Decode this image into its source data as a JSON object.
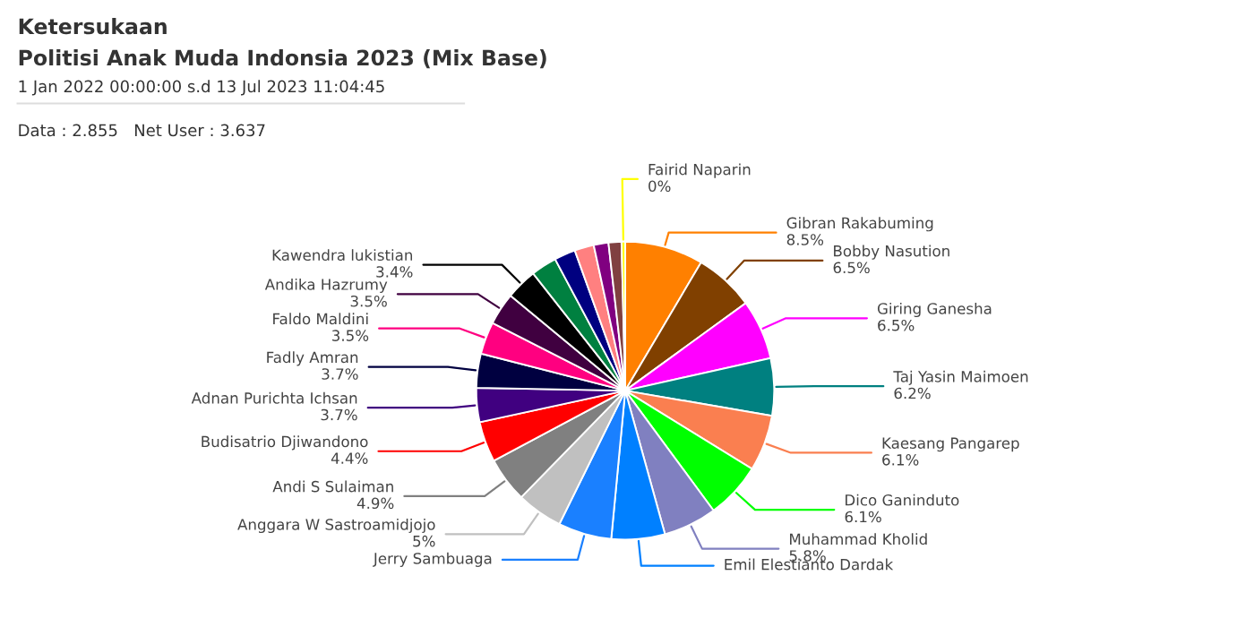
{
  "chart_data": {
    "type": "pie",
    "title": "Ketersukaan",
    "subtitle": "Politisi Anak Muda Indonsia 2023 (Mix Base)",
    "annotations": [
      "1 Jan 2022 00:00:00 s.d 13 Jul 2023 11:04:45",
      "Data : 2.855   Net User : 3.637"
    ],
    "categories": [
      "Gibran Rakabuming",
      "Bobby Nasution",
      "Giring Ganesha",
      "Taj Yasin Maimoen",
      "Kaesang Pangarep",
      "Dico Ganinduto",
      "Muhammad Kholid",
      "Emil Elestianto Dardak",
      "Jerry Sambuaga",
      "Anggara W Sastroamidjojo",
      "Andi S Sulaiman",
      "Budisatrio Djiwandono",
      "Adnan Purichta Ichsan",
      "Fadly Amran",
      "Faldo Maldini",
      "Andika Hazrumy",
      "Kawendra lukistian",
      null,
      null,
      null,
      null,
      null,
      "Fairid Naparin"
    ],
    "values": [
      8.5,
      6.5,
      6.5,
      6.2,
      6.1,
      6.1,
      5.8,
      5.8,
      5.8,
      5,
      4.9,
      4.4,
      3.7,
      3.7,
      3.5,
      3.5,
      3.4,
      2.8,
      2.3,
      2.1,
      1.6,
      1.4,
      0.4
    ],
    "value_labels": [
      "8.5%",
      "6.5%",
      "6.5%",
      "6.2%",
      "6.1%",
      "6.1%",
      "5.8%",
      null,
      null,
      "5%",
      "4.9%",
      "4.4%",
      "3.7%",
      "3.7%",
      "3.5%",
      "3.5%",
      "3.4%",
      null,
      null,
      null,
      null,
      null,
      "0%"
    ],
    "colors": [
      "#ff8000",
      "#804000",
      "#ff00ff",
      "#008080",
      "#fa7f50",
      "#00ff00",
      "#8080c0",
      "#0080ff",
      "#1a80ff",
      "#c0c0c0",
      "#808080",
      "#ff0000",
      "#400080",
      "#000040",
      "#ff0080",
      "#400040",
      "#000000",
      "#008040",
      "#000080",
      "#ff8080",
      "#800080",
      "#804040",
      "#ffff00"
    ],
    "legend": false
  }
}
